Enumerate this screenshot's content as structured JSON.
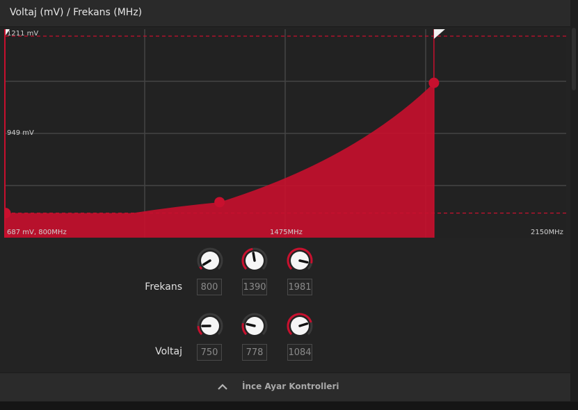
{
  "header": {
    "title": "Voltaj (mV) / Frekans (MHz)"
  },
  "graph": {
    "labels": {
      "v_max": "1211 mV",
      "v_mid": "949 mV",
      "origin": "687 mV, 800MHz",
      "f_mid": "1475MHz",
      "f_max": "2150MHz"
    },
    "accent": "#c8102e"
  },
  "chart_data": {
    "type": "area",
    "x_unit": "MHz",
    "y_unit": "mV",
    "xlim": [
      800,
      2150
    ],
    "ylim": [
      687,
      1211
    ],
    "points": [
      {
        "x": 800,
        "y": 750
      },
      {
        "x": 1390,
        "y": 778
      },
      {
        "x": 1981,
        "y": 1084
      }
    ],
    "x_ticks": [
      800,
      1475,
      2150
    ],
    "y_ticks": [
      687,
      949,
      1211
    ],
    "grid": true
  },
  "controls": {
    "frequency": {
      "label": "Frekans",
      "values": [
        "800",
        "1390",
        "1981"
      ]
    },
    "voltage": {
      "label": "Voltaj",
      "values": [
        "750",
        "778",
        "1084"
      ]
    }
  },
  "footer": {
    "label": "İnce Ayar Kontrolleri"
  }
}
